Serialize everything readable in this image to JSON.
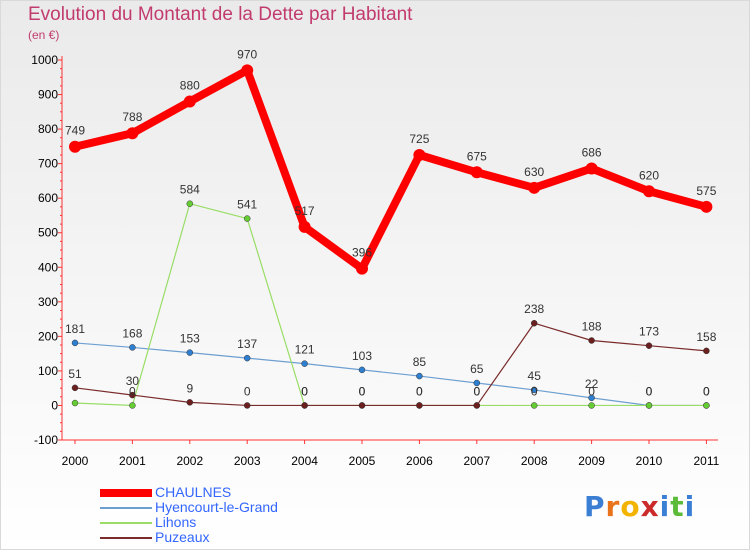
{
  "title": "Evolution du Montant de la Dette par Habitant",
  "subtitle": "(en €)",
  "logo": {
    "text": "Proxiti",
    "letter_colors": [
      "#3b7fd4",
      "#e8731a",
      "#f2b400",
      "#cc2b2b",
      "#3b7fd4",
      "#5dbb3a",
      "#3b7fd4"
    ]
  },
  "chart_data": {
    "type": "line",
    "title": "Evolution du Montant de la Dette par Habitant",
    "subtitle": "(en €)",
    "xlabel": "",
    "ylabel": "",
    "x": [
      "2000",
      "2001",
      "2002",
      "2003",
      "2004",
      "2005",
      "2006",
      "2007",
      "2008",
      "2009",
      "2010",
      "2011"
    ],
    "ylim": [
      -100,
      1000
    ],
    "yticks": [
      "-100",
      "0",
      "100",
      "200",
      "300",
      "400",
      "500",
      "600",
      "700",
      "800",
      "900",
      "1000"
    ],
    "grid": false,
    "legend_position": "bottom-left",
    "series": [
      {
        "name": "CHAULNES",
        "color": "#ff0000",
        "point_color": "#ff0000",
        "values": [
          749,
          788,
          880,
          970,
          517,
          396,
          725,
          675,
          630,
          686,
          620,
          575
        ],
        "labels": [
          "749",
          "788",
          "880",
          "970",
          "517",
          "396",
          "725",
          "675",
          "630",
          "686",
          "620",
          "575"
        ]
      },
      {
        "name": "Hyencourt-le-Grand",
        "color": "#6d9fd1",
        "point_color": "#2f7fd0",
        "values": [
          181,
          168,
          153,
          137,
          121,
          103,
          85,
          65,
          45,
          22,
          0,
          0
        ],
        "labels": [
          "181",
          "168",
          "153",
          "137",
          "121",
          "103",
          "85",
          "65",
          "45",
          "22",
          "0",
          "0"
        ]
      },
      {
        "name": "Lihons",
        "color": "#99dd66",
        "point_color": "#66cc33",
        "values": [
          7,
          0,
          584,
          541,
          0,
          0,
          0,
          0,
          0,
          0,
          0,
          0
        ],
        "labels": [
          "",
          "0",
          "584",
          "541",
          "0",
          "0",
          "0",
          "0",
          "0",
          "0",
          "0",
          "0"
        ]
      },
      {
        "name": "Puzeaux",
        "color": "#7a2b2b",
        "point_color": "#6b1f1f",
        "values": [
          51,
          30,
          9,
          0,
          0,
          0,
          0,
          0,
          238,
          188,
          173,
          158
        ],
        "labels": [
          "51",
          "30",
          "9",
          "0",
          "0",
          "0",
          "0",
          "0",
          "238",
          "188",
          "173",
          "158"
        ]
      }
    ]
  }
}
